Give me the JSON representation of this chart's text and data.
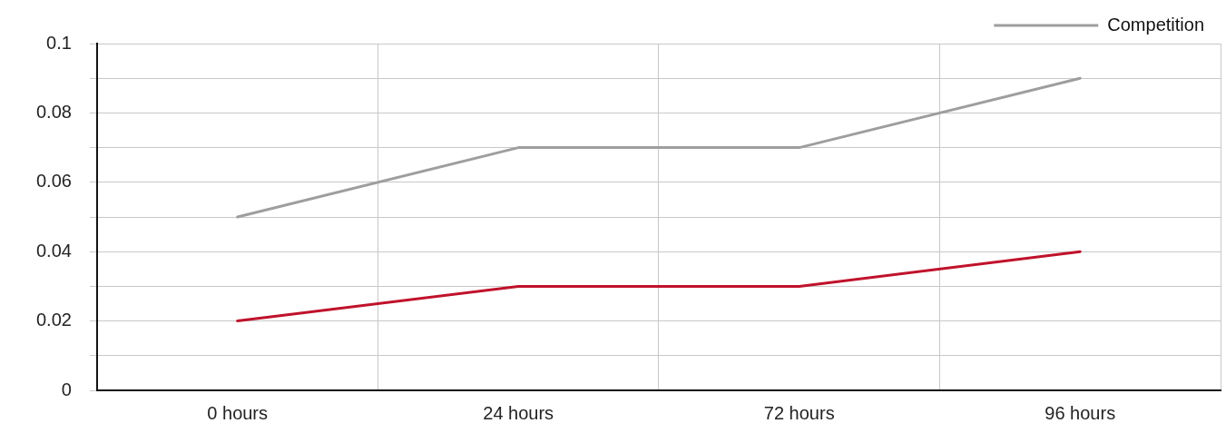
{
  "chart_data": {
    "type": "line",
    "categories": [
      "0 hours",
      "24 hours",
      "72 hours",
      "96 hours"
    ],
    "series": [
      {
        "name": "Competition",
        "color": "#9e9e9e",
        "values": [
          0.05,
          0.07,
          0.07,
          0.09
        ]
      },
      {
        "color": "#c0122c",
        "values": [
          0.02,
          0.03,
          0.03,
          0.04
        ]
      }
    ],
    "ylim": [
      0,
      0.1
    ],
    "yticks": [
      0,
      {
        "value": 0.01,
        "label": null
      },
      0.02,
      {
        "value": 0.03,
        "label": null
      },
      0.04,
      {
        "value": 0.05,
        "label": null
      },
      0.06,
      {
        "value": 0.07,
        "label": null
      },
      0.08,
      {
        "value": 0.09,
        "label": null
      },
      0.1
    ],
    "grid": true,
    "legend": "top right"
  }
}
